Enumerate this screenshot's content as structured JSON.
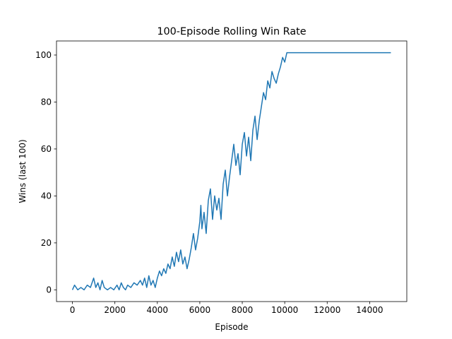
{
  "chart_data": {
    "type": "line",
    "title": "100-Episode Rolling Win Rate",
    "xlabel": "Episode",
    "ylabel": "Wins (last 100)",
    "xlim": [
      -750,
      15750
    ],
    "ylim": [
      -5,
      106
    ],
    "xticks": [
      0,
      2000,
      4000,
      6000,
      8000,
      10000,
      12000,
      14000
    ],
    "yticks": [
      0,
      20,
      40,
      60,
      80,
      100
    ],
    "grid": false,
    "legend": "none",
    "line_color": "#1f77b4",
    "series": [
      {
        "x": [
          0,
          100,
          250,
          400,
          550,
          700,
          850,
          1000,
          1100,
          1200,
          1300,
          1400,
          1500,
          1650,
          1800,
          1950,
          2100,
          2200,
          2300,
          2400,
          2500,
          2600,
          2750,
          2900,
          3050,
          3200,
          3300,
          3400,
          3500,
          3600,
          3700,
          3800,
          3900,
          4000,
          4100,
          4200,
          4300,
          4400,
          4500,
          4600,
          4700,
          4800,
          4900,
          5000,
          5100,
          5200,
          5300,
          5400,
          5500,
          5600,
          5700,
          5800,
          5900,
          6000,
          6050,
          6100,
          6200,
          6300,
          6400,
          6500,
          6600,
          6700,
          6800,
          6900,
          7000,
          7100,
          7200,
          7300,
          7400,
          7500,
          7600,
          7700,
          7800,
          7900,
          8000,
          8100,
          8200,
          8300,
          8400,
          8500,
          8600,
          8700,
          8800,
          8900,
          9000,
          9100,
          9200,
          9300,
          9400,
          9500,
          9600,
          9700,
          9800,
          9900,
          10000,
          10100,
          10200,
          11000,
          12000,
          13000,
          14000,
          15000
        ],
        "y": [
          0,
          2,
          0,
          1,
          0,
          2,
          1,
          5,
          1,
          3,
          0,
          4,
          1,
          0,
          1,
          0,
          2,
          0,
          3,
          1,
          0,
          2,
          1,
          3,
          2,
          4,
          2,
          5,
          1,
          6,
          2,
          4,
          1,
          5,
          8,
          6,
          9,
          7,
          11,
          9,
          14,
          10,
          16,
          12,
          17,
          11,
          14,
          9,
          13,
          18,
          24,
          17,
          22,
          29,
          36,
          26,
          33,
          24,
          38,
          43,
          30,
          40,
          34,
          39,
          30,
          45,
          51,
          40,
          48,
          55,
          62,
          53,
          58,
          49,
          62,
          67,
          57,
          65,
          55,
          68,
          74,
          64,
          72,
          78,
          84,
          81,
          89,
          86,
          93,
          90,
          88,
          92,
          95,
          99,
          97,
          101,
          101,
          101,
          101,
          101,
          101,
          101
        ]
      }
    ]
  }
}
